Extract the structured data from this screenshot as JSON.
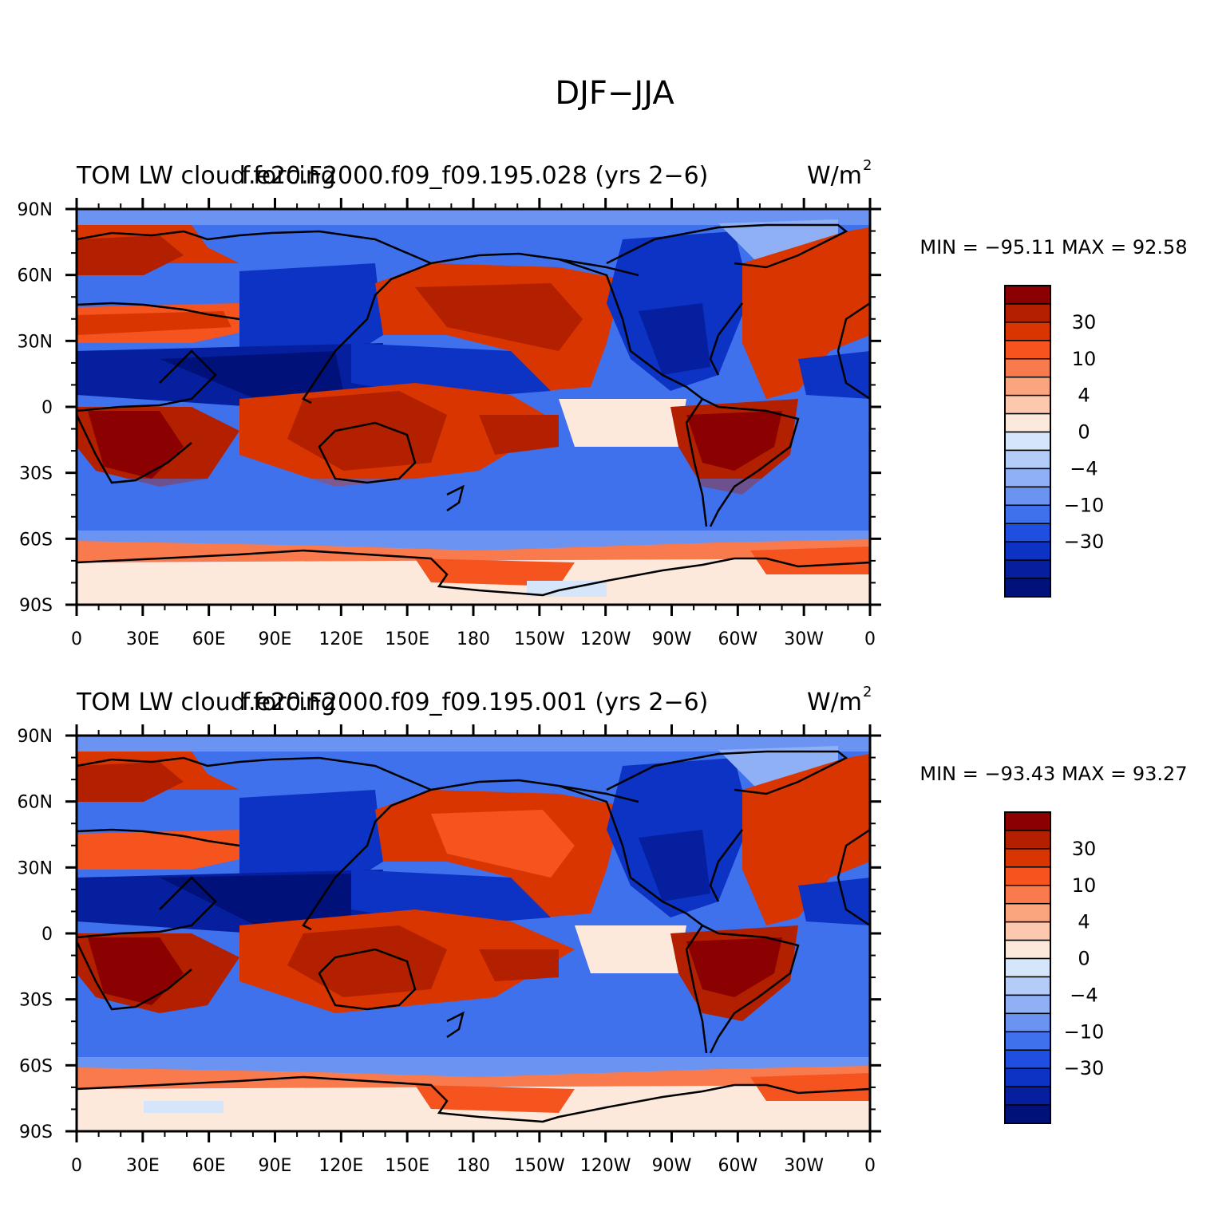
{
  "title": "DJF−JJA",
  "panels": [
    {
      "left_label": "TOM LW cloud forcing",
      "center_label": "f.e20.F2000.f09_f09.195.028 (yrs 2−6)",
      "units": "W/m",
      "units_sup": "2",
      "stats": "MIN = −95.11  MAX =   92.58",
      "min": -95.11,
      "max": 92.58
    },
    {
      "left_label": "TOM LW cloud forcing",
      "center_label": "f.e20.F2000.f09_f09.195.001 (yrs 2−6)",
      "units": "W/m",
      "units_sup": "2",
      "stats": "MIN = −93.43  MAX =   93.27",
      "min": -93.43,
      "max": 93.27
    }
  ],
  "axes": {
    "lat_ticks": [
      "90N",
      "60N",
      "30N",
      "0",
      "30S",
      "60S",
      "90S"
    ],
    "lon_ticks": [
      "0",
      "30E",
      "60E",
      "90E",
      "120E",
      "150E",
      "180",
      "150W",
      "120W",
      "90W",
      "60W",
      "30W",
      "0"
    ]
  },
  "colorbar": {
    "labels": [
      "30",
      "10",
      "4",
      "0",
      "−4",
      "−10",
      "−30"
    ],
    "colors": [
      "#8b0000",
      "#b22000",
      "#d93500",
      "#f5541e",
      "#f97b4d",
      "#fba57f",
      "#fdc9ae",
      "#fde9dc",
      "#d5e6fb",
      "#b3cdf8",
      "#8fb0f5",
      "#6a93f2",
      "#3f71ed",
      "#1f4fe0",
      "#0c33c4",
      "#051f9e",
      "#00127a"
    ]
  }
}
